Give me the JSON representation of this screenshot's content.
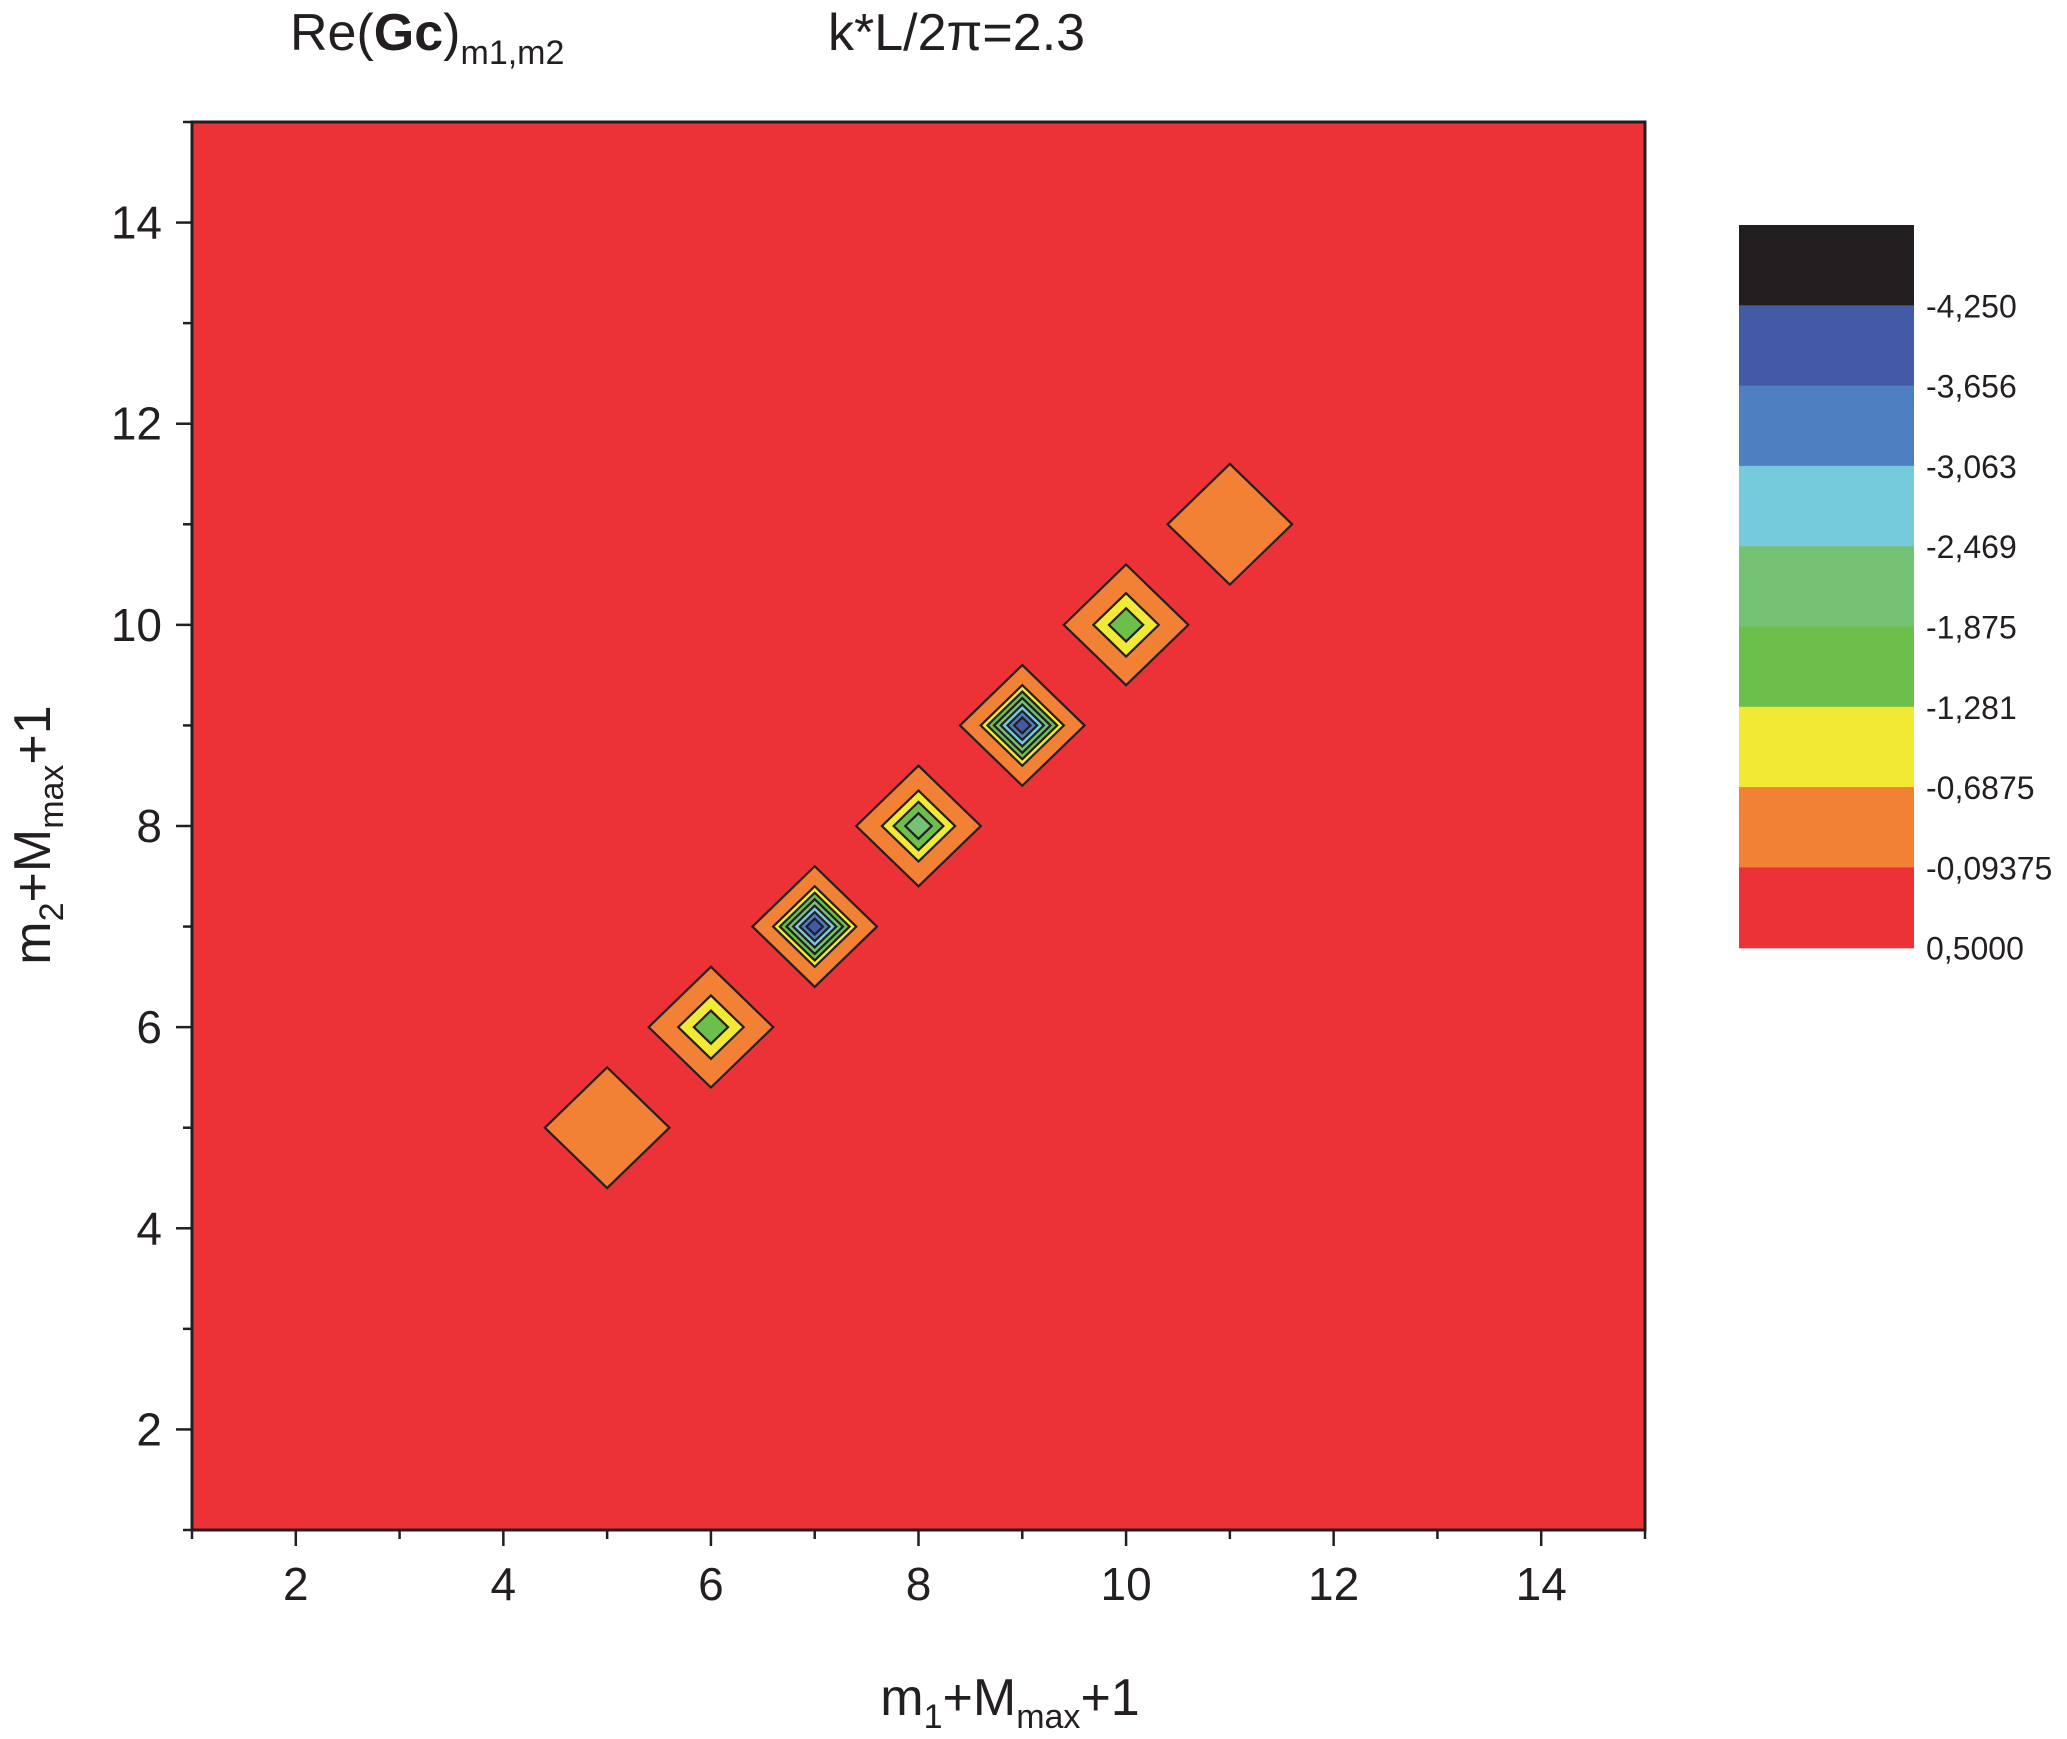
{
  "chart_data": {
    "type": "heatmap",
    "title_parts": {
      "re_prefix": "Re(",
      "bold": "Gc",
      "close": ")",
      "subscript": "m1,m2",
      "param": "k*L/2π=2.3"
    },
    "xlabel_parts": {
      "a": "m",
      "a_sub": "1",
      "b": "+M",
      "b_sub": "max",
      "c": "+1"
    },
    "ylabel_parts": {
      "a": "m",
      "a_sub": "2",
      "b": "+M",
      "b_sub": "max",
      "c": "+1"
    },
    "xlim": [
      1,
      15
    ],
    "ylim": [
      1,
      15
    ],
    "x_ticks": [
      "2",
      "4",
      "6",
      "8",
      "10",
      "12",
      "14"
    ],
    "y_ticks": [
      "2",
      "4",
      "6",
      "8",
      "10",
      "12",
      "14"
    ],
    "background_value": 0.5,
    "peaks": [
      {
        "x": 5,
        "y": 5,
        "min_level": 1
      },
      {
        "x": 6,
        "y": 6,
        "min_level": 3
      },
      {
        "x": 7,
        "y": 7,
        "min_level": 7
      },
      {
        "x": 8,
        "y": 8,
        "min_level": 4
      },
      {
        "x": 9,
        "y": 9,
        "min_level": 7
      },
      {
        "x": 10,
        "y": 10,
        "min_level": 3
      },
      {
        "x": 11,
        "y": 11,
        "min_level": 1
      }
    ],
    "colorbar": {
      "labels": [
        "-4,250",
        "-3,656",
        "-3,063",
        "-2,469",
        "-1,875",
        "-1,281",
        "-0,6875",
        "-0,09375",
        "0,5000"
      ],
      "colors": [
        "#231f20",
        "#435aa6",
        "#4e80c1",
        "#75cbdc",
        "#76c275",
        "#6cbf4b",
        "#f2e935",
        "#f28136",
        "#ec3237"
      ]
    }
  }
}
